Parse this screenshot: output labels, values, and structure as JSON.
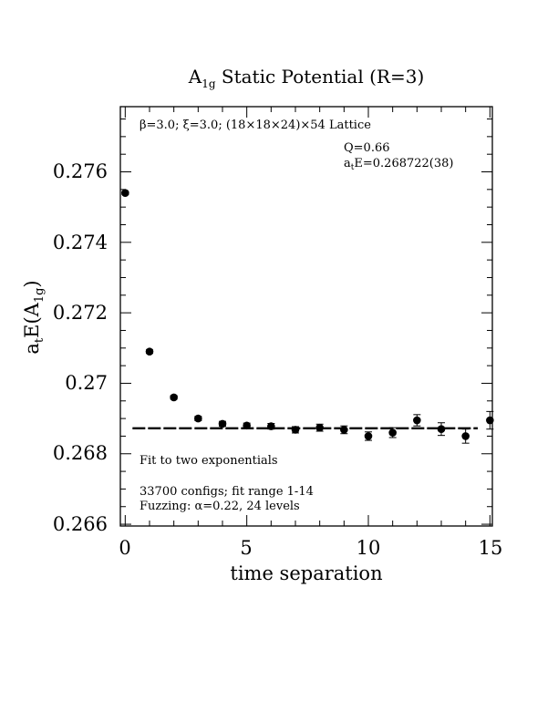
{
  "chart_data": {
    "type": "scatter",
    "title": "A",
    "title_sub": "1g",
    "title_rest": " Static Potential (R=3)",
    "xlabel": "time separation",
    "ylabel": "a",
    "ylabel_sub1": "t",
    "ylabel_mid": "E(A",
    "ylabel_sub2": "1g",
    "ylabel_end": ")",
    "xlim": [
      -0.2,
      15.1
    ],
    "ylim": [
      0.26595,
      0.27785
    ],
    "x_ticks": [
      "0",
      "5",
      "10",
      "15"
    ],
    "y_ticks": [
      "0.276",
      "0.274",
      "0.272",
      "0.27",
      "0.268",
      "0.266"
    ],
    "lattice_text": "β=3.0; ξ=3.0; (18×18×24)×54 Lattice",
    "q_text": "Q=0.66",
    "energy_prefix": "a",
    "energy_sub": "t",
    "energy_rest": "E=0.268722(38)",
    "fit_text": "Fit to two exponentials",
    "configs_text": "33700 configs; fit range 1-14",
    "fuzzing_text": "Fuzzing: α=0.22, 24 levels",
    "points": [
      {
        "x": 0,
        "y": 0.2754,
        "err": 4e-05
      },
      {
        "x": 1,
        "y": 0.2709,
        "err": 5e-05
      },
      {
        "x": 2,
        "y": 0.2696,
        "err": 5e-05
      },
      {
        "x": 3,
        "y": 0.269,
        "err": 6e-05
      },
      {
        "x": 4,
        "y": 0.26885,
        "err": 7e-05
      },
      {
        "x": 5,
        "y": 0.2688,
        "err": 7e-05
      },
      {
        "x": 6,
        "y": 0.26878,
        "err": 8e-05
      },
      {
        "x": 7,
        "y": 0.26868,
        "err": 9e-05
      },
      {
        "x": 8,
        "y": 0.26874,
        "err": 0.0001
      },
      {
        "x": 9,
        "y": 0.26868,
        "err": 0.00011
      },
      {
        "x": 10,
        "y": 0.2685,
        "err": 0.00012
      },
      {
        "x": 11,
        "y": 0.2686,
        "err": 0.00014
      },
      {
        "x": 12,
        "y": 0.26895,
        "err": 0.00016
      },
      {
        "x": 13,
        "y": 0.2687,
        "err": 0.00018
      },
      {
        "x": 14,
        "y": 0.2685,
        "err": 0.0002
      },
      {
        "x": 15,
        "y": 0.26895,
        "err": 0.00025
      }
    ],
    "fit": {
      "x_start": 1,
      "x_end": 14,
      "y": 0.268722
    }
  }
}
